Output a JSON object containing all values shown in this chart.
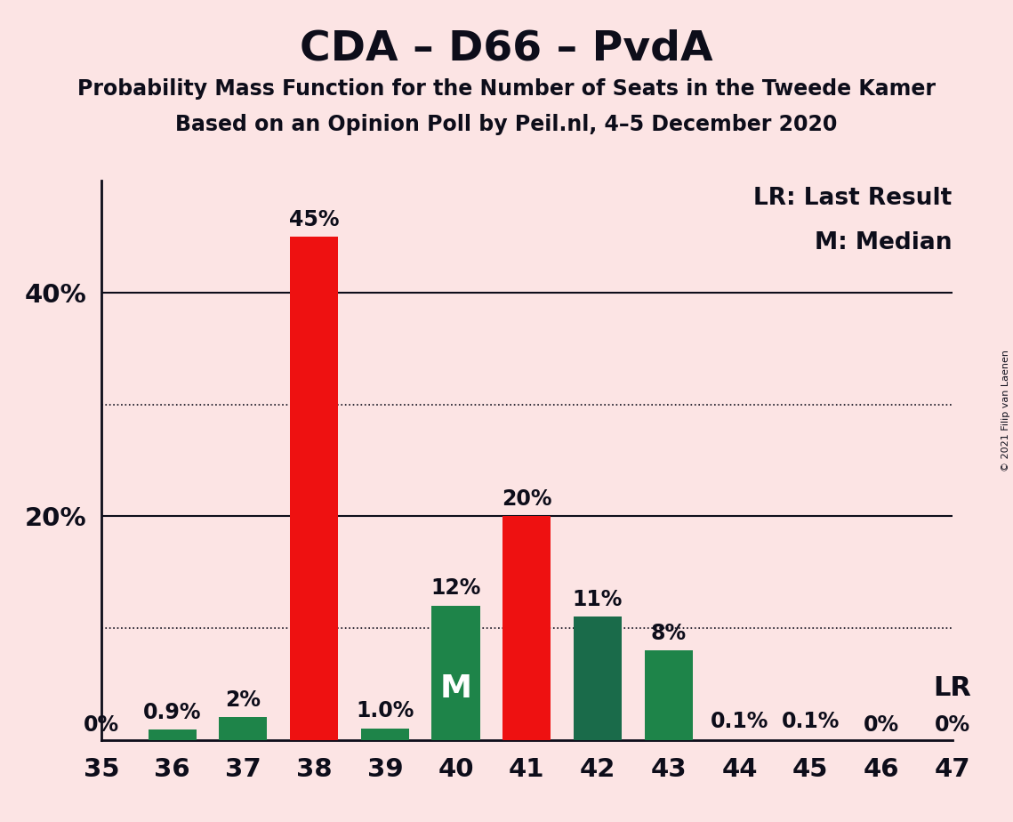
{
  "title": "CDA – D66 – PvdA",
  "subtitle1": "Probability Mass Function for the Number of Seats in the Tweede Kamer",
  "subtitle2": "Based on an Opinion Poll by Peil.nl, 4–5 December 2020",
  "copyright": "© 2021 Filip van Laenen",
  "legend_lr": "LR: Last Result",
  "legend_m": "M: Median",
  "background_color": "#fce4e4",
  "categories": [
    35,
    36,
    37,
    38,
    39,
    40,
    41,
    42,
    43,
    44,
    45,
    46,
    47
  ],
  "values": [
    0,
    0.9,
    2.0,
    45.0,
    1.0,
    12.0,
    20.0,
    11.0,
    8.0,
    0.1,
    0.1,
    0,
    0
  ],
  "bar_colors": [
    "none",
    "#1e8449",
    "#1e8449",
    "#ee1111",
    "#1e8449",
    "#1e8449",
    "#ee1111",
    "#1a6b4a",
    "#1e8449",
    "none",
    "none",
    "none",
    "none"
  ],
  "bar_labels": [
    "0%",
    "0.9%",
    "2%",
    "45%",
    "1.0%",
    "12%",
    "20%",
    "11%",
    "8%",
    "0.1%",
    "0.1%",
    "0%",
    "0%"
  ],
  "median_bar": 40,
  "lr_bar": 47,
  "ylim": [
    0,
    50
  ],
  "yticks": [
    20,
    40
  ],
  "ytick_labels": [
    "20%",
    "40%"
  ],
  "dotted_lines": [
    10,
    30
  ],
  "solid_lines": [
    20,
    40
  ],
  "title_fontsize": 34,
  "subtitle_fontsize": 17,
  "axis_label_fontsize": 21,
  "bar_label_fontsize": 17,
  "text_color": "#0d0d1a"
}
